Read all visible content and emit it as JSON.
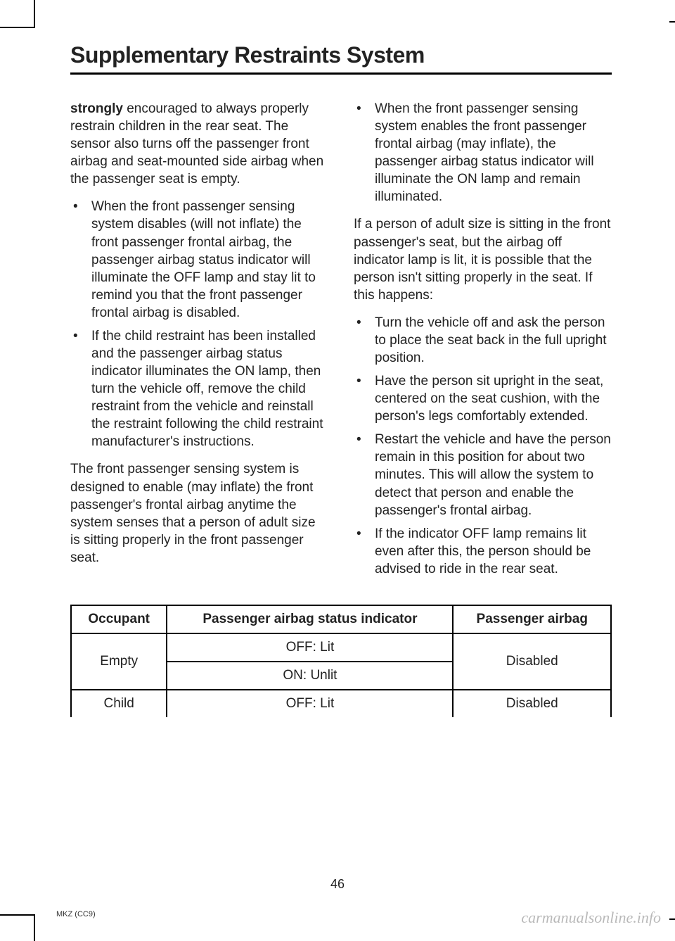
{
  "header": {
    "title": "Supplementary Restraints System"
  },
  "left_col": {
    "intro_strong": "strongly",
    "intro_rest": " encouraged to always properly restrain children in the rear seat. The sensor also turns off the passenger front airbag and seat-mounted side airbag when the passenger seat is empty.",
    "bullets_a": [
      "When the front passenger sensing system disables (will not inflate) the front passenger frontal airbag, the passenger airbag status indicator will illuminate the OFF lamp and stay lit to remind you that the front passenger frontal airbag is disabled.",
      "If the child restraint has been installed and the passenger airbag status indicator illuminates the ON lamp, then turn the vehicle off, remove the child restraint from the vehicle and reinstall the restraint following the child restraint manufacturer's instructions."
    ],
    "para2": "The front passenger sensing system is designed to enable (may inflate) the front passenger's frontal airbag anytime the system senses that a person of adult size is sitting properly in the front passenger seat."
  },
  "right_col": {
    "bullets_top": [
      "When the front passenger sensing system enables the front passenger frontal airbag (may inflate), the passenger airbag status indicator will illuminate the ON lamp and remain illuminated."
    ],
    "para1": "If a person of adult size is sitting in the front passenger's seat, but the airbag off indicator lamp is lit, it is possible that the person isn't sitting properly in the seat. If this happens:",
    "bullets_b": [
      "Turn the vehicle off and ask the person to place the seat back in the full upright position.",
      "Have the person sit upright in the seat, centered on the seat cushion, with the person's legs comfortably extended.",
      "Restart the vehicle and have the person remain in this position for about two minutes. This will allow the system to detect that person and enable the passenger's frontal airbag.",
      "If the indicator OFF lamp remains lit even after this, the person should be advised to ride in the rear seat."
    ]
  },
  "table": {
    "headers": [
      "Occupant",
      "Passenger airbag status indicator",
      "Passenger airbag"
    ],
    "rows": [
      {
        "occupant": "Empty",
        "indicator_a": "OFF: Lit",
        "indicator_b": "ON: Unlit",
        "airbag": "Disabled",
        "rowspan": 2
      },
      {
        "occupant": "Child",
        "indicator_a": "OFF: Lit",
        "airbag": "Disabled",
        "rowspan": 1
      }
    ]
  },
  "page_number": "46",
  "footer_code": "MKZ (CC9)",
  "watermark": "carmanualsonline.info"
}
